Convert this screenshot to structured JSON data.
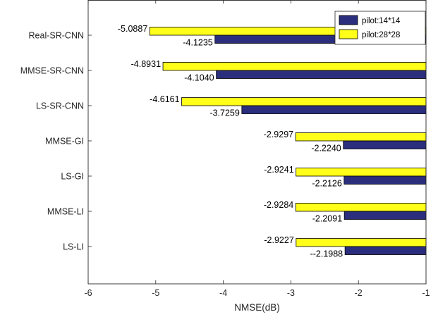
{
  "chart_data": {
    "type": "bar",
    "orientation": "horizontal",
    "categories": [
      "Real-SR-CNN",
      "MMSE-SR-CNN",
      "LS-SR-CNN",
      "MMSE-GI",
      "LS-GI",
      "MMSE-LI",
      "LS-LI"
    ],
    "series": [
      {
        "name": "pilot:14*14",
        "color": "#2b2e7c",
        "values": [
          -4.1235,
          -4.104,
          -3.7259,
          -2.224,
          -2.2126,
          -2.2091,
          -2.1988
        ],
        "labels": [
          "-4.1235",
          "-4.1040",
          "-3.7259",
          "-2.2240",
          "-2.2126",
          "-2.2091",
          "--2.1988"
        ]
      },
      {
        "name": "pilot:28*28",
        "color": "#ffff1a",
        "values": [
          -5.0887,
          -4.8931,
          -4.6161,
          -2.9297,
          -2.9241,
          -2.9284,
          -2.9227
        ],
        "labels": [
          "-5.0887",
          "-4.8931",
          "-4.6161",
          "-2.9297",
          "-2.9241",
          "-2.9284",
          "-2.9227"
        ]
      }
    ],
    "xlabel": "NMSE(dB)",
    "ylabel": "",
    "xlim": [
      -6,
      -1
    ],
    "xticks": [
      -6,
      -5,
      -4,
      -3,
      -2,
      -1
    ],
    "xtick_labels": [
      "-6",
      "-5",
      "-4",
      "-3",
      "-2",
      "-1"
    ],
    "bar_baseline": -1,
    "grid": false,
    "legend_position": "top-right"
  }
}
